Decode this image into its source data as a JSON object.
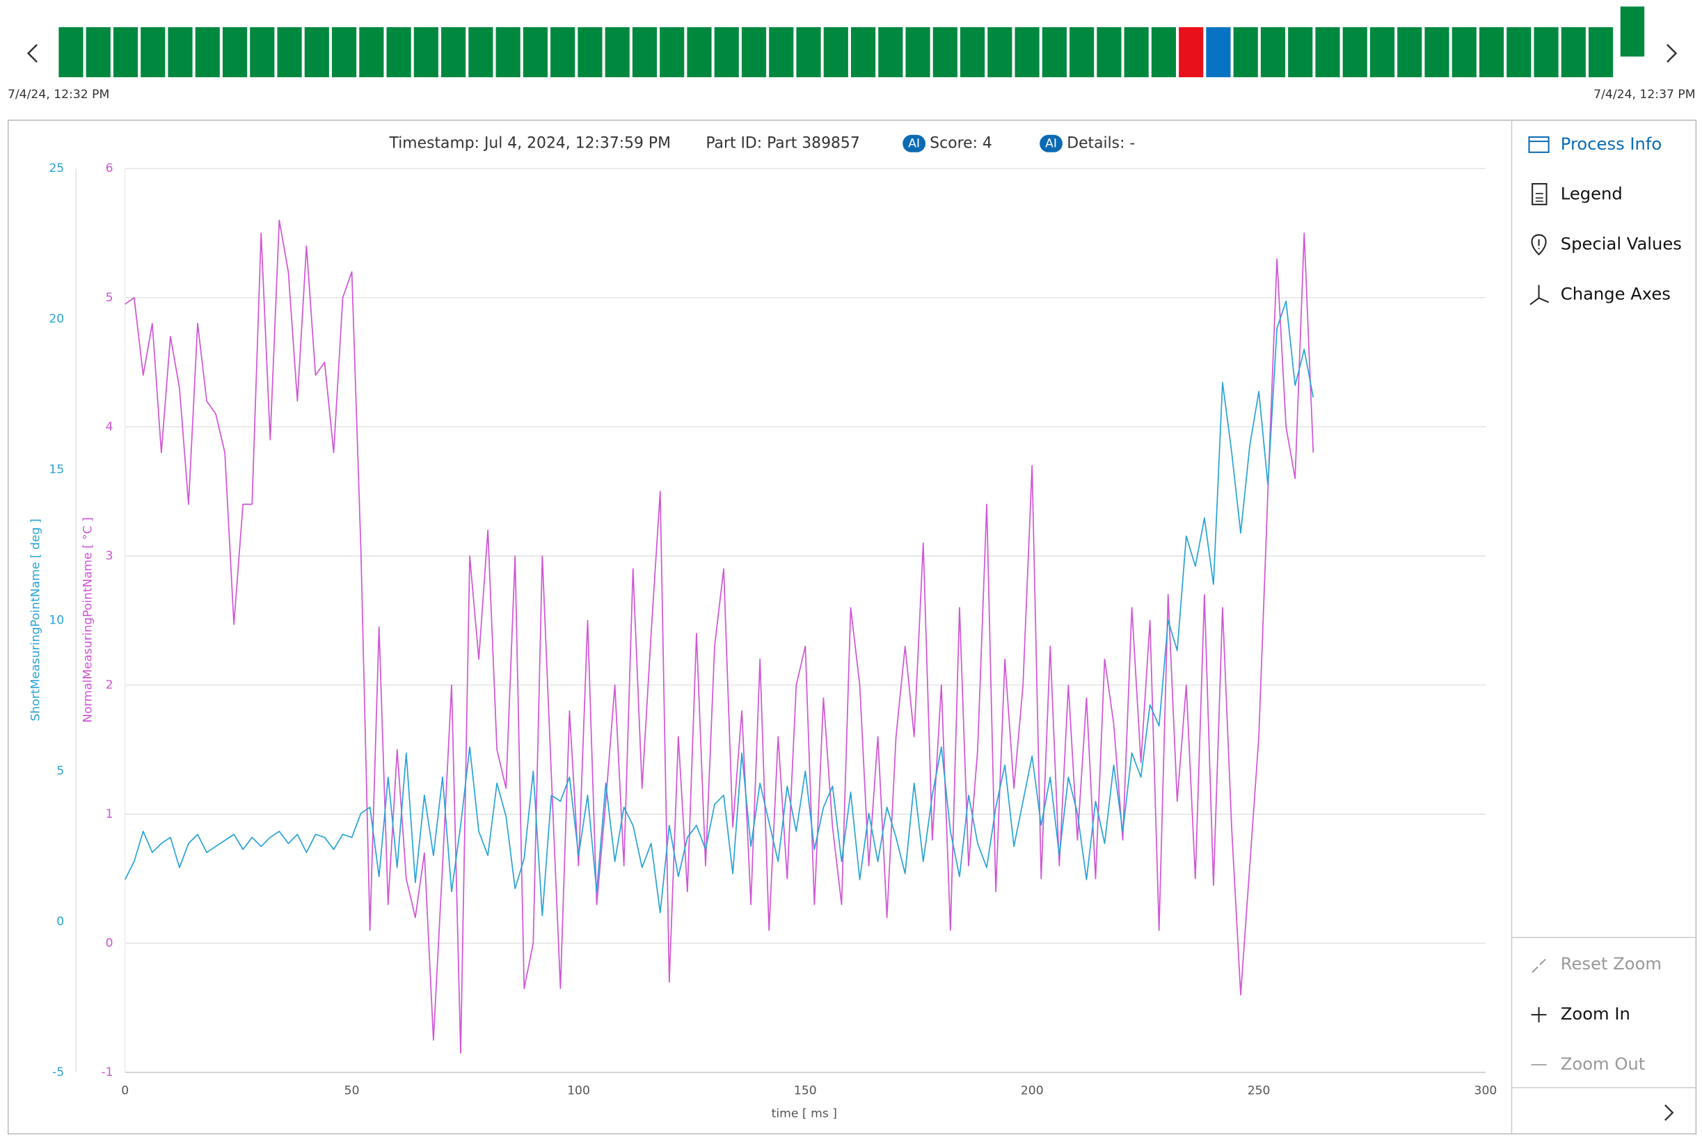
{
  "timeline": {
    "start_label": "7/4/24, 12:32 PM",
    "end_label": "7/4/24, 12:37 PM"
  },
  "header": {
    "timestamp": "Timestamp: Jul 4, 2024, 12:37:59 PM",
    "part_id": "Part ID: Part 389857",
    "ai_badge": "AI",
    "score": "Score: 4",
    "details": "Details: -"
  },
  "sidebar": {
    "items": [
      "Process Info",
      "Legend",
      "Special Values",
      "Change Axes"
    ],
    "zoom": [
      "Reset Zoom",
      "Zoom In",
      "Zoom Out"
    ]
  },
  "chart_data": {
    "type": "line",
    "xlabel": "time [ ms ]",
    "ylabel": "NormalMeasuringPointName [ °C ]",
    "y2label": "ShortMeasuringPointName [ deg ]",
    "xlim": [
      0,
      300
    ],
    "xticks": [
      0,
      50,
      100,
      150,
      200,
      250,
      300
    ],
    "ylim": [
      -1,
      6
    ],
    "yticks": [
      -1,
      0,
      1,
      2,
      3,
      4,
      5,
      6
    ],
    "y2lim": [
      -5,
      25
    ],
    "y2ticks": [
      -5,
      0,
      5,
      10,
      15,
      20,
      25
    ],
    "grid": true,
    "x": [
      0,
      2,
      4,
      6,
      8,
      10,
      12,
      14,
      16,
      18,
      20,
      22,
      24,
      26,
      28,
      30,
      32,
      34,
      36,
      38,
      40,
      42,
      44,
      46,
      48,
      50,
      52,
      54,
      56,
      58,
      60,
      62,
      64,
      66,
      68,
      70,
      72,
      74,
      76,
      78,
      80,
      82,
      84,
      86,
      88,
      90,
      92,
      94,
      96,
      98,
      100,
      102,
      104,
      106,
      108,
      110,
      112,
      114,
      116,
      118,
      120,
      122,
      124,
      126,
      128,
      130,
      132,
      134,
      136,
      138,
      140,
      142,
      144,
      146,
      148,
      150,
      152,
      154,
      156,
      158,
      160,
      162,
      164,
      166,
      168,
      170,
      172,
      174,
      176,
      178,
      180,
      182,
      184,
      186,
      188,
      190,
      192,
      194,
      196,
      198,
      200,
      202,
      204,
      206,
      208,
      210,
      212,
      214,
      216,
      218,
      220,
      222,
      224,
      226,
      228,
      230,
      232,
      234,
      236,
      238,
      240,
      242,
      244,
      246,
      248,
      250,
      252,
      254,
      256,
      258,
      260,
      262
    ],
    "series": [
      {
        "color": "#d055d6",
        "values": [
          4.95,
          5.0,
          4.4,
          4.8,
          3.8,
          4.7,
          4.3,
          3.4,
          4.8,
          4.2,
          4.1,
          3.8,
          2.47,
          3.4,
          3.4,
          5.5,
          3.9,
          5.6,
          5.2,
          4.2,
          5.4,
          4.4,
          4.5,
          3.8,
          5.0,
          5.2,
          3.05,
          0.1,
          2.45,
          0.3,
          1.5,
          0.5,
          0.2,
          0.7,
          -0.75,
          0.6,
          2.0,
          -0.85,
          3.0,
          2.2,
          3.2,
          1.5,
          1.2,
          3.0,
          -0.35,
          0.0,
          3.0,
          1.3,
          -0.35,
          1.8,
          0.6,
          2.5,
          0.3,
          1.1,
          2.0,
          0.6,
          2.9,
          1.2,
          2.4,
          3.5,
          -0.3,
          1.6,
          0.4,
          2.4,
          0.6,
          2.3,
          2.9,
          0.9,
          1.8,
          0.3,
          2.2,
          0.1,
          1.6,
          0.5,
          2.0,
          2.3,
          0.3,
          1.9,
          0.9,
          0.3,
          2.6,
          2.0,
          0.6,
          1.6,
          0.2,
          1.6,
          2.3,
          1.6,
          3.1,
          0.8,
          2.0,
          0.1,
          2.6,
          0.6,
          1.5,
          3.4,
          0.4,
          2.2,
          1.2,
          2.0,
          3.7,
          0.5,
          2.3,
          0.6,
          2.0,
          0.8,
          1.9,
          0.5,
          2.2,
          1.7,
          0.8,
          2.6,
          1.4,
          2.5,
          0.1,
          2.7,
          1.1,
          2.0,
          0.5,
          2.7,
          0.45,
          2.6,
          0.9,
          -0.4,
          0.6,
          1.6,
          3.5,
          5.3,
          4.0,
          3.6,
          5.5,
          3.8
        ]
      },
      {
        "color": "#2aa3d6",
        "axis": "y2",
        "values": [
          1.4,
          2.0,
          3.0,
          2.3,
          2.6,
          2.8,
          1.8,
          2.6,
          2.9,
          2.3,
          2.5,
          2.7,
          2.9,
          2.4,
          2.8,
          2.5,
          2.8,
          3.0,
          2.6,
          2.9,
          2.3,
          2.9,
          2.8,
          2.4,
          2.9,
          2.8,
          3.6,
          3.8,
          1.5,
          4.8,
          1.8,
          5.6,
          1.3,
          4.2,
          2.2,
          4.8,
          1.0,
          3.2,
          5.8,
          3.0,
          2.2,
          4.6,
          3.5,
          1.1,
          2.1,
          5.0,
          0.2,
          4.2,
          4.0,
          4.8,
          2.2,
          4.2,
          1.0,
          4.6,
          2.0,
          3.8,
          3.2,
          1.8,
          2.6,
          0.3,
          3.2,
          1.5,
          2.8,
          3.2,
          2.4,
          3.9,
          4.2,
          1.6,
          5.6,
          2.5,
          4.6,
          3.3,
          2.0,
          4.5,
          3.0,
          5.0,
          2.4,
          3.8,
          4.5,
          2.0,
          4.3,
          1.4,
          3.6,
          2.0,
          3.8,
          2.8,
          1.6,
          4.6,
          2.0,
          4.2,
          5.8,
          3.0,
          1.5,
          4.2,
          2.6,
          1.8,
          3.8,
          5.2,
          2.5,
          4.0,
          5.5,
          3.2,
          4.8,
          2.2,
          4.8,
          3.6,
          1.4,
          4.0,
          2.6,
          5.2,
          3.0,
          5.6,
          4.8,
          7.2,
          6.5,
          10.0,
          9.0,
          12.8,
          11.8,
          13.4,
          11.2,
          17.9,
          15.6,
          12.9,
          15.8,
          17.6,
          14.5,
          19.7,
          20.6,
          17.8,
          19.0,
          17.4
        ]
      }
    ]
  }
}
